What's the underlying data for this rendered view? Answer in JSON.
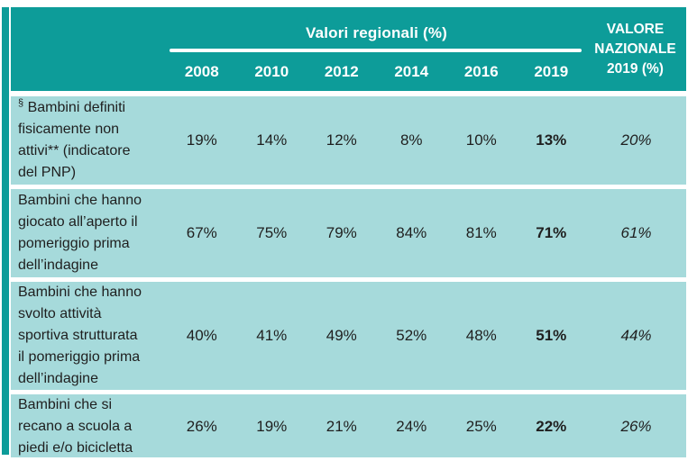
{
  "colors": {
    "header_teal": "#0d9c99",
    "row_blue": "#a6dadb",
    "text_dark": "#1f1f1f"
  },
  "header": {
    "group_label": "Valori regionali (%)",
    "years": [
      "2008",
      "2010",
      "2012",
      "2014",
      "2016",
      "2019"
    ],
    "national_line1": "VALORE",
    "national_line2": "NAZIONALE",
    "national_line3": "2019 (%)"
  },
  "rows": [
    {
      "prefix": "§",
      "label": " Bambini definiti\nfisicamente non\nattivi** (indicatore\ndel PNP)",
      "values": [
        "19%",
        "14%",
        "12%",
        "8%",
        "10%",
        "13%"
      ],
      "national": "20%"
    },
    {
      "prefix": "",
      "label": "Bambini che hanno\ngiocato all’aperto il\npomeriggio prima\ndell’indagine",
      "values": [
        "67%",
        "75%",
        "79%",
        "84%",
        "81%",
        "71%"
      ],
      "national": "61%"
    },
    {
      "prefix": "",
      "label": "Bambini che hanno\nsvolto attività\nsportiva strutturata\nil pomeriggio prima\ndell’indagine",
      "values": [
        "40%",
        "41%",
        "49%",
        "52%",
        "48%",
        "51%"
      ],
      "national": "44%"
    },
    {
      "prefix": "",
      "label": "Bambini che si\nrecano a scuola a\npiedi e/o bicicletta",
      "values": [
        "26%",
        "19%",
        "21%",
        "24%",
        "25%",
        "22%"
      ],
      "national": "26%"
    }
  ]
}
